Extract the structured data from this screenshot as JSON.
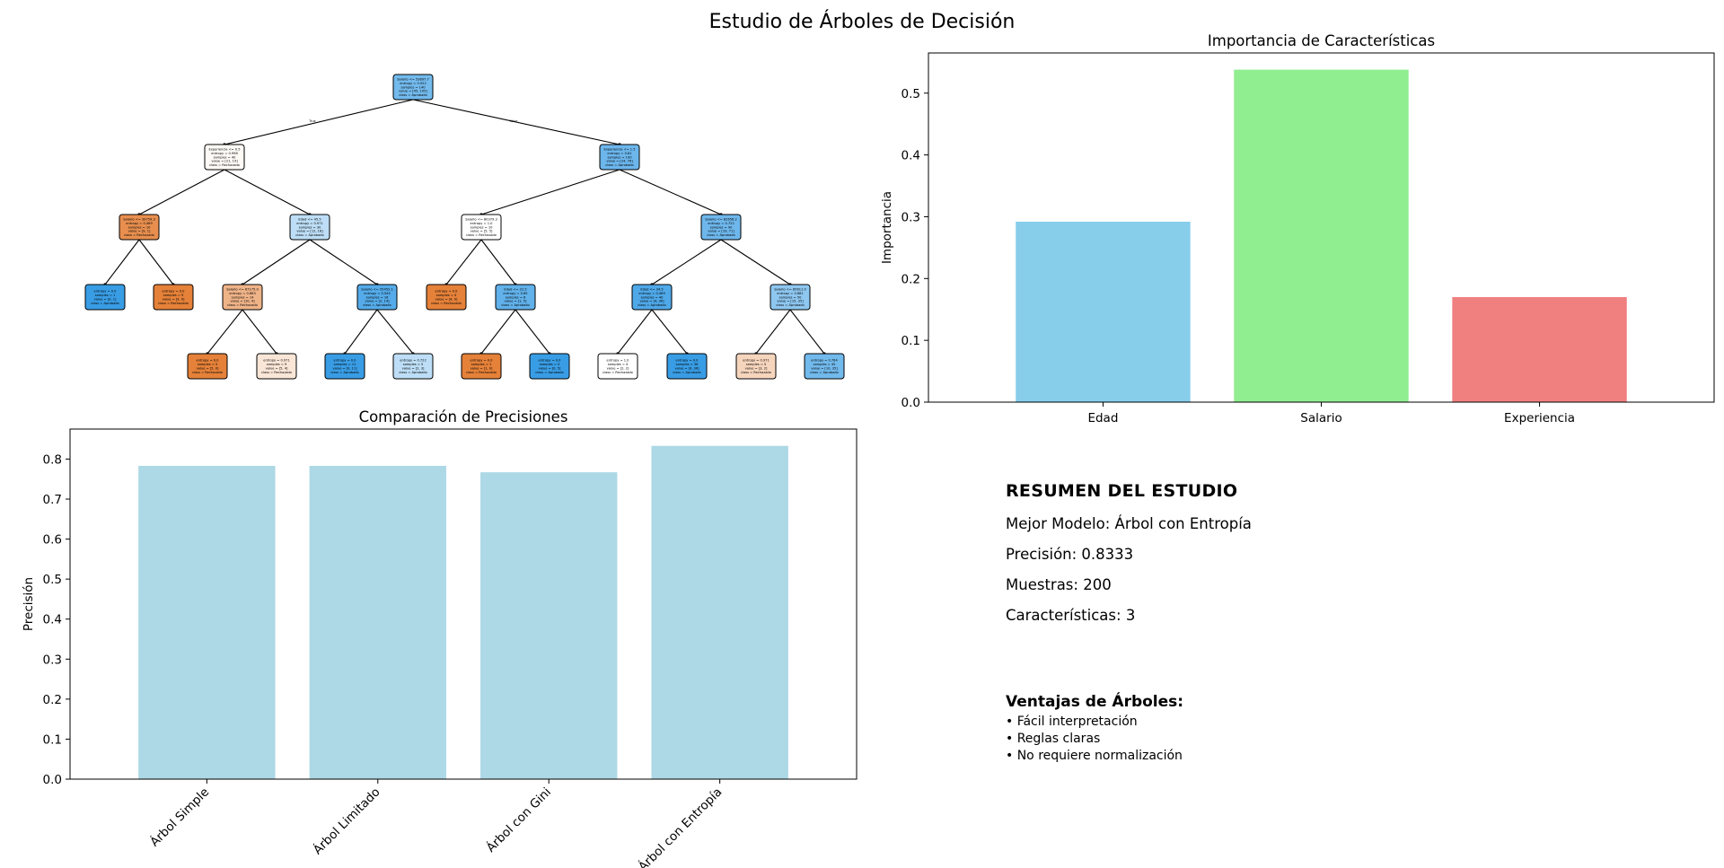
{
  "figure": {
    "title": "Estudio de Árboles de Decisión"
  },
  "chart_data": [
    {
      "type": "bar",
      "title": "Importancia de Características",
      "xlabel": "",
      "ylabel": "Importancia",
      "categories": [
        "Edad",
        "Salario",
        "Experiencia"
      ],
      "values": [
        0.292,
        0.538,
        0.17
      ],
      "colors": [
        "#87ceeb",
        "#90ee90",
        "#f08080"
      ],
      "ylim": [
        0,
        0.565
      ],
      "yticks": [
        "0.0",
        "0.1",
        "0.2",
        "0.3",
        "0.4",
        "0.5"
      ],
      "grid": false
    },
    {
      "type": "bar",
      "title": "Comparación de Precisiones",
      "xlabel": "",
      "ylabel": "Precisión",
      "categories": [
        "Árbol Simple",
        "Árbol Limitado",
        "Árbol con Gini",
        "Árbol con Entropía"
      ],
      "values": [
        0.783,
        0.783,
        0.767,
        0.833
      ],
      "colors": [
        "#add8e6",
        "#add8e6",
        "#add8e6",
        "#add8e6"
      ],
      "ylim": [
        0,
        0.875
      ],
      "yticks": [
        "0.0",
        "0.1",
        "0.2",
        "0.3",
        "0.4",
        "0.5",
        "0.6",
        "0.7",
        "0.8"
      ],
      "xtick_rotation": 45,
      "grid": false
    }
  ],
  "tree": {
    "nodes": [
      {
        "lines": [
          "Salario <= 53897.7",
          "entropy = 0.922",
          "samples = 140",
          "value = [45, 105]",
          "class = Aprobado"
        ],
        "fill": "#73baed"
      },
      {
        "lines": [
          "Experiencia <= 0.5",
          "entropy = 0.998",
          "samples = 40",
          "value = [21, 19]",
          "class = Rechazado"
        ],
        "fill": "#fefaf6"
      },
      {
        "lines": [
          "Experiencia <= 1.5",
          "entropy = 0.81",
          "samples = 100",
          "value = [24, 76]",
          "class = Aprobado"
        ],
        "fill": "#6cb6ec"
      },
      {
        "lines": [
          "Salario <= 39759.3",
          "entropy = 0.469",
          "samples = 10",
          "value = [9, 1]",
          "class = Rechazado"
        ],
        "fill": "#e88f4f"
      },
      {
        "lines": [
          "Edad <= 45.5",
          "entropy = 0.971",
          "samples = 30",
          "value = [12, 18]",
          "class = Aprobado"
        ],
        "fill": "#bddef6"
      },
      {
        "lines": [
          "Salario <= 80379.3",
          "entropy = 1.0",
          "samples = 10",
          "value = [5, 5]",
          "class = Rechazado"
        ],
        "fill": "#ffffff"
      },
      {
        "lines": [
          "Salario <= 82656.2",
          "entropy = 0.722",
          "samples = 90",
          "value = [19, 71]",
          "class = Aprobado"
        ],
        "fill": "#6eb7ec"
      },
      {
        "lines": [
          "entropy = 0.0",
          "samples = 1",
          "value = [0, 1]",
          "class = Aprobado"
        ],
        "fill": "#399de5"
      },
      {
        "lines": [
          "entropy = 0.0",
          "samples = 9",
          "value = [9, 0]",
          "class = Rechazado"
        ],
        "fill": "#e58139"
      },
      {
        "lines": [
          "Salario <= 67175.9",
          "entropy = 0.863",
          "samples = 14",
          "value = [10, 4]",
          "class = Rechazado"
        ],
        "fill": "#efb388"
      },
      {
        "lines": [
          "Salario <= 55452.1",
          "entropy = 0.544",
          "samples = 16",
          "value = [2, 14]",
          "class = Aprobado"
        ],
        "fill": "#55abe9"
      },
      {
        "lines": [
          "entropy = 0.0",
          "samples = 4",
          "value = [4, 0]",
          "class = Rechazado"
        ],
        "fill": "#e58139"
      },
      {
        "lines": [
          "Edad <= 22.5",
          "entropy = 0.65",
          "samples = 6",
          "value = [1, 5]",
          "class = Aprobado"
        ],
        "fill": "#61b1ea"
      },
      {
        "lines": [
          "Edad <= 34.5",
          "entropy = 0.469",
          "samples = 40",
          "value = [4, 36]",
          "class = Aprobado"
        ],
        "fill": "#4fa8e8"
      },
      {
        "lines": [
          "Salario <= 85611.0",
          "entropy = 0.881",
          "samples = 50",
          "value = [15, 35]",
          "class = Aprobado"
        ],
        "fill": "#8ec7f0"
      },
      {
        "lines": [
          "entropy = 0.0",
          "samples = 5",
          "value = [5, 0]",
          "class = Rechazado"
        ],
        "fill": "#e58139"
      },
      {
        "lines": [
          "entropy = 0.971",
          "samples = 9",
          "value = [5, 4]",
          "class = Rechazado"
        ],
        "fill": "#fae6d7"
      },
      {
        "lines": [
          "entropy = 0.0",
          "samples = 11",
          "value = [0, 11]",
          "class = Aprobado"
        ],
        "fill": "#399de5"
      },
      {
        "lines": [
          "entropy = 0.722",
          "samples = 5",
          "value = [2, 3]",
          "class = Aprobado"
        ],
        "fill": "#bddef6"
      },
      {
        "lines": [
          "entropy = 0.0",
          "samples = 1",
          "value = [1, 0]",
          "class = Rechazado"
        ],
        "fill": "#e58139"
      },
      {
        "lines": [
          "entropy = 0.0",
          "samples = 5",
          "value = [0, 5]",
          "class = Aprobado"
        ],
        "fill": "#399de5"
      },
      {
        "lines": [
          "entropy = 1.0",
          "samples = 4",
          "value = [2, 2]",
          "class = Rechazado"
        ],
        "fill": "#ffffff"
      },
      {
        "lines": [
          "entropy = 0.0",
          "samples = 36",
          "value = [0, 36]",
          "class = Aprobado"
        ],
        "fill": "#399de5"
      },
      {
        "lines": [
          "entropy = 0.971",
          "samples = 5",
          "value = [3, 2]",
          "class = Rechazado"
        ],
        "fill": "#f6d5bd"
      },
      {
        "lines": [
          "entropy = 0.764",
          "samples = 45",
          "value = [10, 35]",
          "class = Aprobado"
        ],
        "fill": "#72b9ec"
      }
    ],
    "edge_labels": [
      "True",
      "False"
    ]
  },
  "summary": {
    "heading": "RESUMEN DEL ESTUDIO",
    "best_model": "Mejor Modelo: Árbol con Entropía",
    "precision": "Precisión: 0.8333",
    "samples": "Muestras: 200",
    "features": "Características: 3"
  },
  "advantages": {
    "heading": "Ventajas de Árboles:",
    "items": [
      "• Fácil interpretación",
      "• Reglas claras",
      "• No requiere normalización"
    ]
  }
}
